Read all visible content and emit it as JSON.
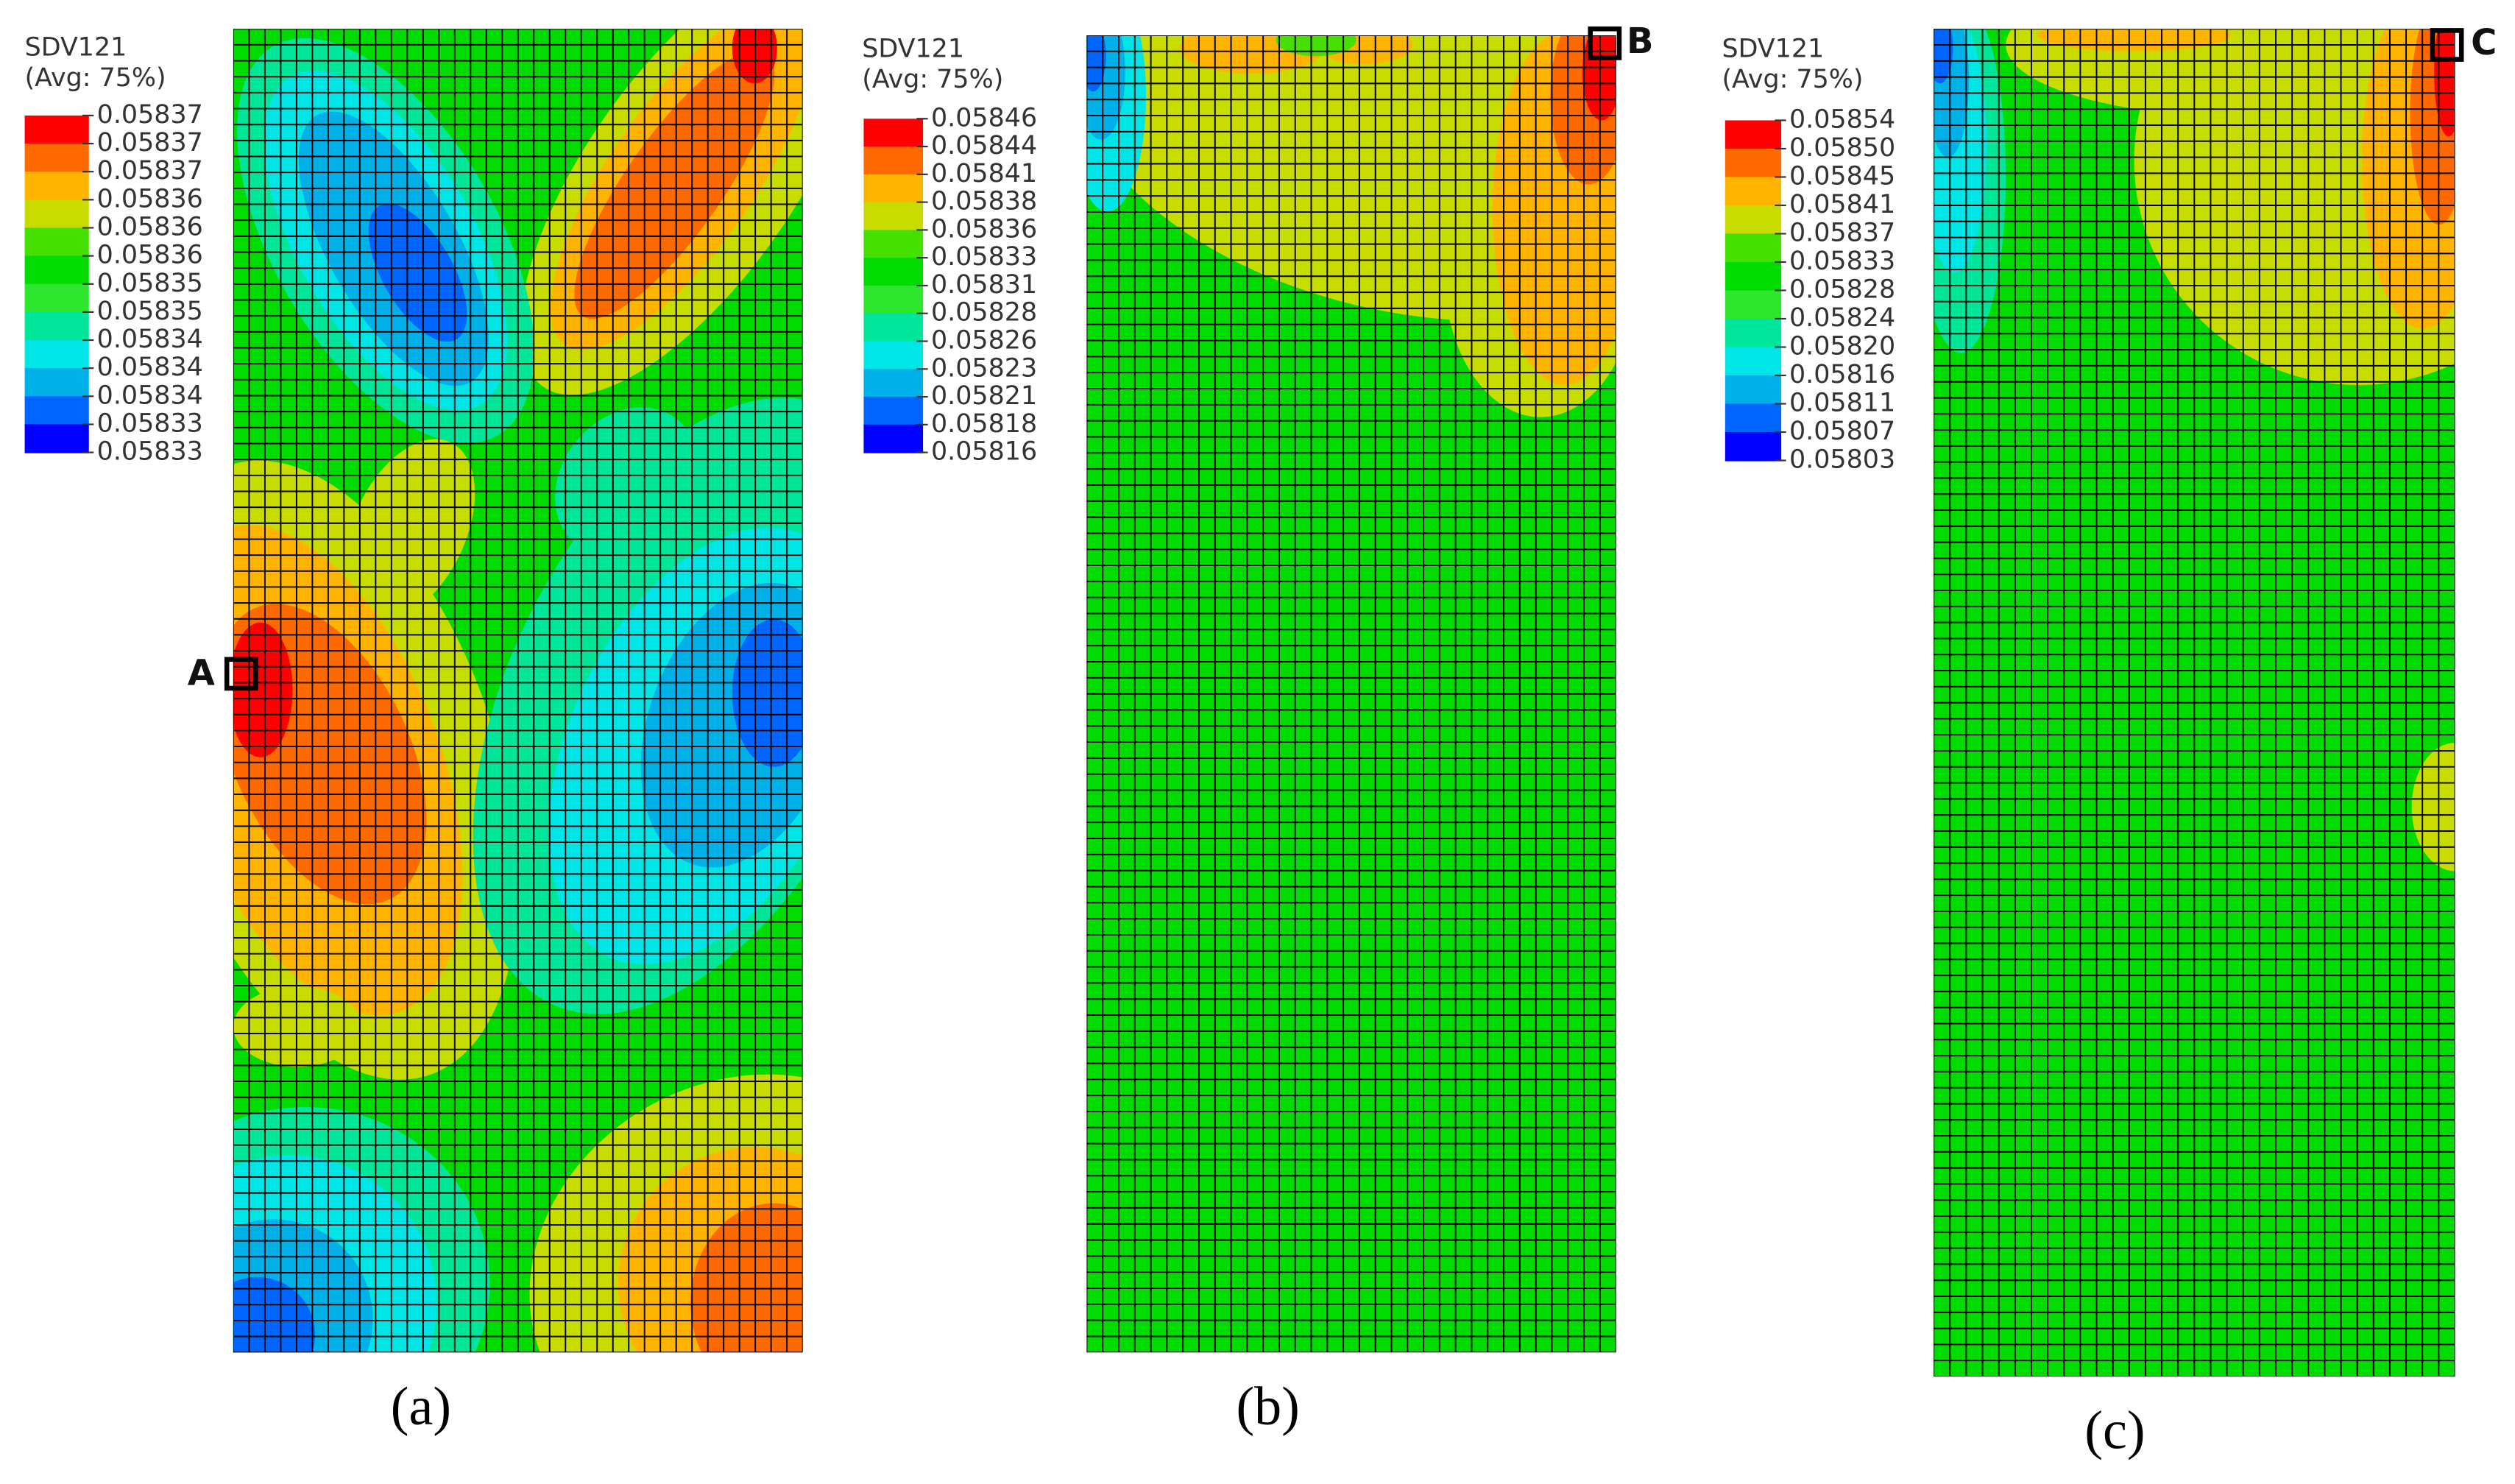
{
  "panels": [
    {
      "legend": {
        "title": "SDV121",
        "subtitle": "(Avg: 75%)",
        "labels": [
          "0.05837",
          "0.05837",
          "0.05837",
          "0.05836",
          "0.05836",
          "0.05836",
          "0.05835",
          "0.05835",
          "0.05834",
          "0.05834",
          "0.05834",
          "0.05833",
          "0.05833"
        ]
      },
      "marker": "A",
      "caption": "(a)"
    },
    {
      "legend": {
        "title": "SDV121",
        "subtitle": "(Avg: 75%)",
        "labels": [
          "0.05846",
          "0.05844",
          "0.05841",
          "0.05838",
          "0.05836",
          "0.05833",
          "0.05831",
          "0.05828",
          "0.05826",
          "0.05823",
          "0.05821",
          "0.05818",
          "0.05816"
        ]
      },
      "marker": "B",
      "caption": "(b)"
    },
    {
      "legend": {
        "title": "SDV121",
        "subtitle": "(Avg: 75%)",
        "labels": [
          "0.05854",
          "0.05850",
          "0.05845",
          "0.05841",
          "0.05837",
          "0.05833",
          "0.05828",
          "0.05824",
          "0.05820",
          "0.05816",
          "0.05811",
          "0.05807",
          "0.05803"
        ]
      },
      "marker": "C",
      "caption": "(c)"
    }
  ]
}
